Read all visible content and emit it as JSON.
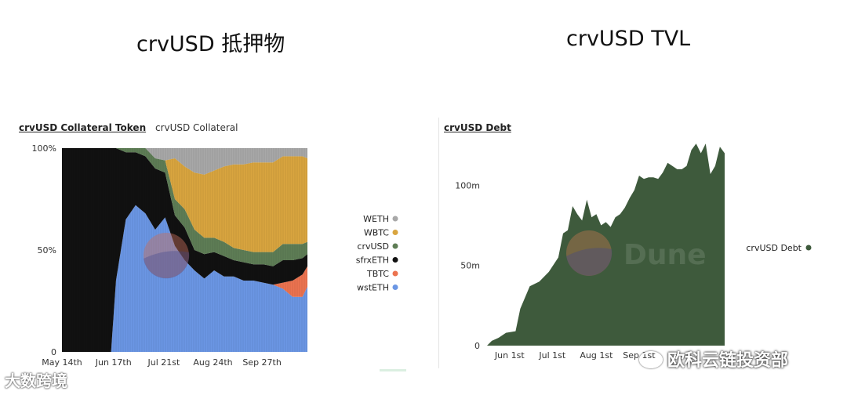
{
  "titles": {
    "left": "crvUSD 抵押物",
    "right": "crvUSD TVL"
  },
  "left_panel": {
    "active_tab": "crvUSD Collateral Token",
    "inactive_tab": "crvUSD Collateral"
  },
  "right_panel": {
    "active_tab": "crvUSD Debt",
    "legend_label": "crvUSD Debt",
    "dune_mark": "Dune"
  },
  "watermarks": {
    "left": "大数跨境",
    "right": "欧科云链投资部"
  },
  "colors": {
    "WETH": "#a8a8a8",
    "WBTC": "#d9a53f",
    "crvUSD": "#5e7d55",
    "sfrxETH": "#111111",
    "TBTC": "#ec7350",
    "wstETH": "#6b96e4",
    "debt": "#3e5a3c"
  },
  "chart_data": [
    {
      "type": "area",
      "stacked": true,
      "normalized": true,
      "x_tick_labels": [
        "May 14th",
        "Jun 17th",
        "Jul 21st",
        "Aug 24th",
        "Sep 27th"
      ],
      "y_tick_labels": [
        "0",
        "50%",
        "100%"
      ],
      "ylim": [
        0,
        100
      ],
      "legend_position": "right",
      "x": [
        0,
        4,
        8,
        12,
        16,
        20,
        22,
        26,
        30,
        34,
        38,
        42,
        46,
        50,
        54,
        58,
        62,
        66,
        70,
        74,
        78,
        82,
        86,
        90,
        94,
        98,
        100
      ],
      "series": [
        {
          "name": "wstETH",
          "values": [
            0,
            0,
            0,
            0,
            0,
            0,
            35,
            65,
            72,
            68,
            60,
            66,
            52,
            45,
            40,
            36,
            40,
            37,
            37,
            35,
            35,
            34,
            33,
            31,
            27,
            27,
            32
          ]
        },
        {
          "name": "TBTC",
          "values": [
            0,
            0,
            0,
            0,
            0,
            0,
            0,
            0,
            0,
            0,
            0,
            0,
            0,
            0,
            0,
            0,
            0,
            0,
            0,
            0,
            0,
            0,
            0,
            3,
            8,
            11,
            10
          ]
        },
        {
          "name": "sfrxETH",
          "values": [
            100,
            100,
            100,
            100,
            100,
            100,
            65,
            33,
            26,
            28,
            30,
            22,
            15,
            16,
            10,
            12,
            9,
            10,
            8,
            9,
            8,
            9,
            9,
            11,
            10,
            8,
            6
          ]
        },
        {
          "name": "crvUSD",
          "values": [
            0,
            0,
            0,
            0,
            0,
            0,
            0,
            2,
            2,
            4,
            5,
            6,
            8,
            9,
            10,
            8,
            7,
            7,
            6,
            6,
            6,
            6,
            7,
            8,
            8,
            7,
            6
          ]
        },
        {
          "name": "WBTC",
          "values": [
            0,
            0,
            0,
            0,
            0,
            0,
            0,
            0,
            0,
            0,
            0,
            0,
            20,
            21,
            28,
            31,
            33,
            37,
            41,
            42,
            44,
            44,
            44,
            43,
            43,
            43,
            41
          ]
        },
        {
          "name": "WETH",
          "values": [
            0,
            0,
            0,
            0,
            0,
            0,
            0,
            0,
            0,
            0,
            5,
            6,
            5,
            9,
            12,
            13,
            11,
            9,
            8,
            8,
            7,
            7,
            7,
            4,
            4,
            4,
            5
          ]
        }
      ]
    },
    {
      "type": "area",
      "x_tick_labels": [
        "Jun 1st",
        "Jul 1st",
        "Aug 1st",
        "Sep 1st"
      ],
      "y_tick_labels": [
        "0",
        "50m",
        "100m"
      ],
      "ylim": [
        0,
        130
      ],
      "legend_position": "right",
      "x": [
        0,
        2,
        5,
        8,
        12,
        14,
        18,
        22,
        26,
        30,
        32,
        34,
        36,
        38,
        40,
        42,
        44,
        46,
        48,
        50,
        52,
        54,
        56,
        58,
        60,
        62,
        64,
        66,
        68,
        70,
        72,
        74,
        76,
        78,
        80,
        82,
        84,
        86,
        88,
        90,
        92,
        94,
        96,
        98,
        100
      ],
      "series": [
        {
          "name": "crvUSD Debt",
          "values": [
            0,
            3,
            5,
            8,
            9,
            23,
            37,
            40,
            46,
            55,
            70,
            72,
            87,
            82,
            78,
            91,
            80,
            82,
            75,
            77,
            74,
            80,
            82,
            86,
            92,
            97,
            106,
            104,
            105,
            105,
            104,
            108,
            114,
            112,
            110,
            110,
            112,
            122,
            126,
            120,
            126,
            107,
            112,
            124,
            120
          ]
        }
      ]
    }
  ]
}
